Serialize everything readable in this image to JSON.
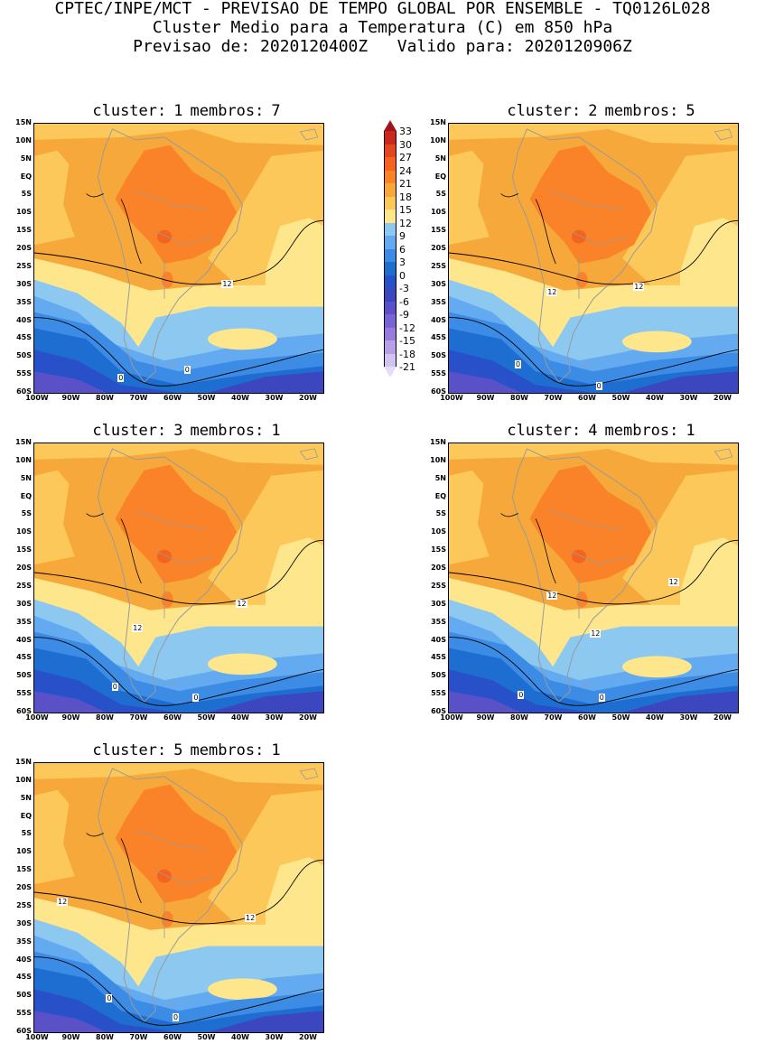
{
  "header": {
    "line1": "CPTEC/INPE/MCT - PREVISAO DE TEMPO GLOBAL POR ENSEMBLE - TQ0126L028",
    "line2": "Cluster Medio para a Temperatura (C) em 850 hPa",
    "line3_a": "Previsao de: 2020120400Z",
    "line3_b": "Valido para: 2020120906Z"
  },
  "axes": {
    "lat_ticks": [
      "15N",
      "10N",
      "5N",
      "EQ",
      "5S",
      "10S",
      "15S",
      "20S",
      "25S",
      "30S",
      "35S",
      "40S",
      "45S",
      "50S",
      "55S",
      "60S"
    ],
    "lon_ticks": [
      "100W",
      "90W",
      "80W",
      "70W",
      "60W",
      "50W",
      "40W",
      "30W",
      "20W"
    ]
  },
  "legend": {
    "levels": [
      "33",
      "30",
      "27",
      "24",
      "21",
      "18",
      "15",
      "12",
      "9",
      "6",
      "3",
      "0",
      "-3",
      "-6",
      "-9",
      "-12",
      "-15",
      "-18",
      "-21"
    ],
    "colors": [
      "#a0141e",
      "#c8281e",
      "#e6461e",
      "#f5641e",
      "#fa8228",
      "#f7a83a",
      "#fcc85a",
      "#fde68c",
      "#8cc8f0",
      "#64aaf0",
      "#3c8ce6",
      "#1e6ed2",
      "#2850c8",
      "#3c46be",
      "#5a50c8",
      "#7864d2",
      "#967ddc",
      "#b9a0e6",
      "#d2c3f0",
      "#e6dcf8"
    ]
  },
  "panels": [
    {
      "cluster_label": "cluster:",
      "cluster": "1",
      "members_label": "membros:",
      "members": "7",
      "contour_labels": [
        "12",
        "0",
        "0"
      ]
    },
    {
      "cluster_label": "cluster:",
      "cluster": "2",
      "members_label": "membros:",
      "members": "5",
      "contour_labels": [
        "12",
        "12",
        "0",
        "0"
      ]
    },
    {
      "cluster_label": "cluster:",
      "cluster": "3",
      "members_label": "membros:",
      "members": "1",
      "contour_labels": [
        "12",
        "12",
        "0",
        "0"
      ]
    },
    {
      "cluster_label": "cluster:",
      "cluster": "4",
      "members_label": "membros:",
      "members": "1",
      "contour_labels": [
        "12",
        "12",
        "12",
        "0",
        "0"
      ]
    },
    {
      "cluster_label": "cluster:",
      "cluster": "5",
      "members_label": "membros:",
      "members": "1",
      "contour_labels": [
        "12",
        "12",
        "0",
        "0"
      ]
    }
  ]
}
